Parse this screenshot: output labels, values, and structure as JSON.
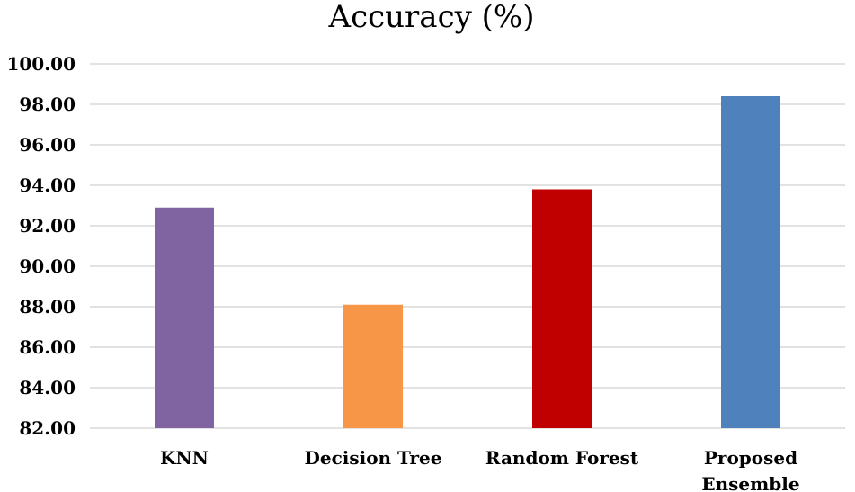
{
  "chart_data": {
    "type": "bar",
    "title": "Accuracy (%)",
    "xlabel": "",
    "ylabel": "",
    "categories": [
      "KNN",
      "Decision Tree",
      "Random Forest",
      "Proposed Ensemble"
    ],
    "category_lines": [
      [
        "KNN"
      ],
      [
        "Decision Tree"
      ],
      [
        "Random Forest"
      ],
      [
        "Proposed",
        "Ensemble"
      ]
    ],
    "values": [
      92.9,
      88.1,
      93.8,
      98.4
    ],
    "colors": [
      "#8064a2",
      "#f79646",
      "#c00000",
      "#4f81bd"
    ],
    "ylim": [
      82,
      100
    ],
    "yticks": [
      "82.00",
      "84.00",
      "86.00",
      "88.00",
      "90.00",
      "92.00",
      "94.00",
      "96.00",
      "98.00",
      "100.00"
    ],
    "grid": true,
    "legend": "none"
  }
}
